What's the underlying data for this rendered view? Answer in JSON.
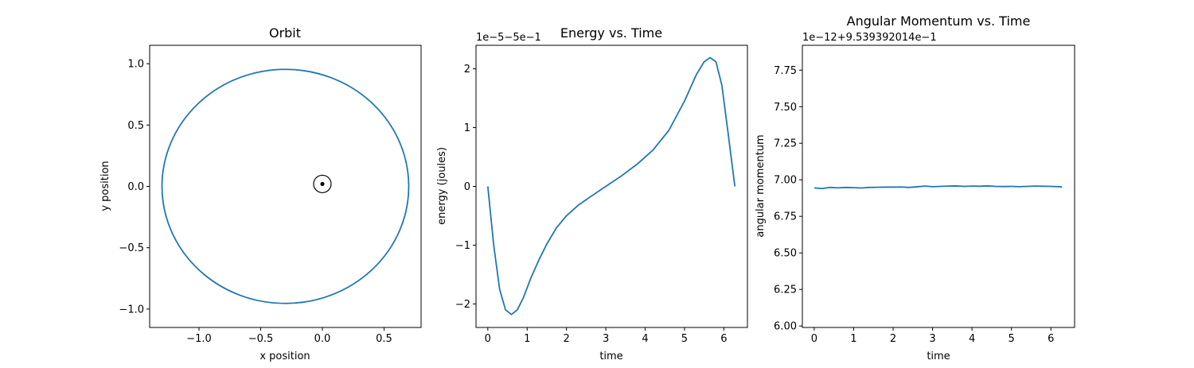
{
  "colors": {
    "series": "#1f77b4",
    "axes": "#000000",
    "background": "#ffffff"
  },
  "chart_data": [
    {
      "type": "line",
      "title": "Orbit",
      "xlabel": "x position",
      "ylabel": "y position",
      "xlim": [
        -1.4,
        0.8
      ],
      "ylim": [
        -1.15,
        1.15
      ],
      "xticks": [
        -1.0,
        -0.5,
        0.0,
        0.5
      ],
      "xtick_labels": [
        "−1.0",
        "−0.5",
        "0.0",
        "0.5"
      ],
      "yticks": [
        -1.0,
        -0.5,
        0.0,
        0.5,
        1.0
      ],
      "ytick_labels": [
        "−1.0",
        "−0.5",
        "0.0",
        "0.5",
        "1.0"
      ],
      "grid": false,
      "series": [
        {
          "kind": "ellipse",
          "center": [
            -0.3,
            0.0
          ],
          "semi_axes": [
            1.0,
            0.954
          ]
        }
      ],
      "markers": [
        {
          "kind": "central-body",
          "x": 0.0,
          "y": 0.02
        }
      ]
    },
    {
      "type": "line",
      "title": "Energy vs. Time",
      "xlabel": "time",
      "ylabel": "energy (joules)",
      "offset_text": "1e−5−5e−1",
      "xlim": [
        -0.3,
        6.6
      ],
      "ylim": [
        -2.4,
        2.4
      ],
      "xticks": [
        0,
        1,
        2,
        3,
        4,
        5,
        6
      ],
      "xtick_labels": [
        "0",
        "1",
        "2",
        "3",
        "4",
        "5",
        "6"
      ],
      "yticks": [
        -2,
        -1,
        0,
        1,
        2
      ],
      "ytick_labels": [
        "−2",
        "−1",
        "0",
        "1",
        "2"
      ],
      "grid": false,
      "series": [
        {
          "x": [
            0.0,
            0.15,
            0.3,
            0.45,
            0.6,
            0.75,
            0.9,
            1.1,
            1.3,
            1.5,
            1.75,
            2.0,
            2.3,
            2.6,
            3.0,
            3.4,
            3.8,
            4.2,
            4.6,
            5.0,
            5.3,
            5.5,
            5.65,
            5.8,
            5.95,
            6.1,
            6.28
          ],
          "y": [
            0.0,
            -1.0,
            -1.75,
            -2.1,
            -2.18,
            -2.1,
            -1.9,
            -1.55,
            -1.25,
            -0.98,
            -0.7,
            -0.5,
            -0.32,
            -0.18,
            0.0,
            0.18,
            0.38,
            0.62,
            0.95,
            1.45,
            1.9,
            2.12,
            2.19,
            2.12,
            1.72,
            0.95,
            0.0
          ]
        }
      ]
    },
    {
      "type": "line",
      "title": "Angular Momentum vs. Time",
      "xlabel": "time",
      "ylabel": "angular momentum",
      "offset_text": "1e−12+9.539392014e−1",
      "xlim": [
        -0.3,
        6.6
      ],
      "ylim": [
        5.99,
        7.92
      ],
      "xticks": [
        0,
        1,
        2,
        3,
        4,
        5,
        6
      ],
      "xtick_labels": [
        "0",
        "1",
        "2",
        "3",
        "4",
        "5",
        "6"
      ],
      "yticks": [
        6.0,
        6.25,
        6.5,
        6.75,
        7.0,
        7.25,
        7.5,
        7.75
      ],
      "ytick_labels": [
        "6.00",
        "6.25",
        "6.50",
        "6.75",
        "7.00",
        "7.25",
        "7.50",
        "7.75"
      ],
      "grid": false,
      "series": [
        {
          "x": [
            0.0,
            0.2,
            0.4,
            0.6,
            0.8,
            1.0,
            1.2,
            1.4,
            1.6,
            1.8,
            2.0,
            2.2,
            2.4,
            2.6,
            2.8,
            3.0,
            3.2,
            3.4,
            3.6,
            3.8,
            4.0,
            4.2,
            4.4,
            4.6,
            4.8,
            5.0,
            5.2,
            5.4,
            5.6,
            5.8,
            6.0,
            6.28
          ],
          "y": [
            6.945,
            6.94,
            6.948,
            6.945,
            6.948,
            6.946,
            6.944,
            6.948,
            6.949,
            6.95,
            6.95,
            6.951,
            6.948,
            6.952,
            6.957,
            6.953,
            6.955,
            6.957,
            6.958,
            6.955,
            6.957,
            6.956,
            6.958,
            6.955,
            6.954,
            6.955,
            6.953,
            6.955,
            6.957,
            6.956,
            6.955,
            6.952
          ]
        }
      ]
    }
  ]
}
